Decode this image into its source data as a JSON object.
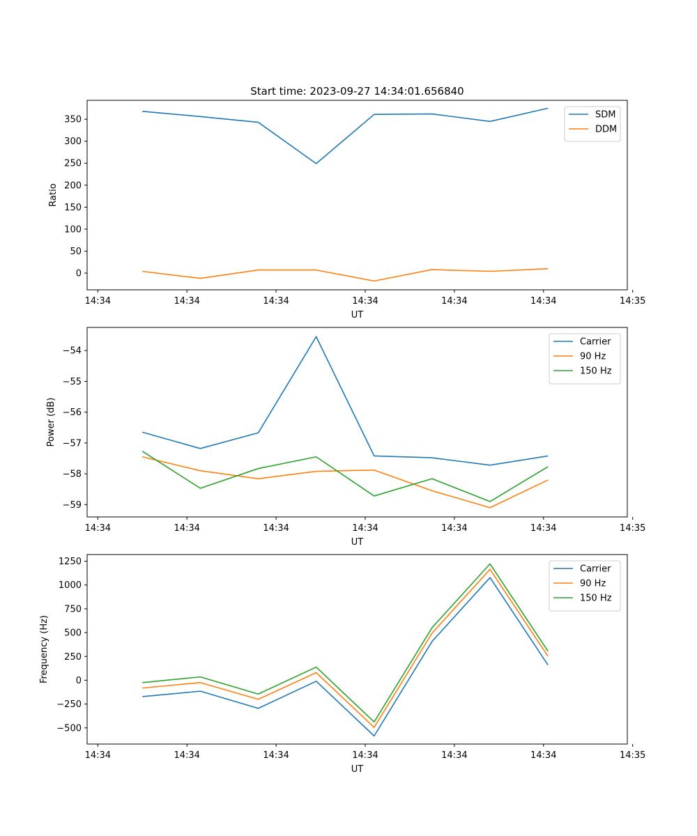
{
  "figure_title": "Start time: 2023-09-27 14:34:01.656840",
  "colors": {
    "blue": "#1f77b4",
    "orange": "#ff7f0e",
    "green": "#2ca02c"
  },
  "chart_data": [
    {
      "type": "line",
      "title": "Start time: 2023-09-27 14:34:01.656840",
      "xlabel": "UT",
      "ylabel": "Ratio",
      "x_ticks": [
        0,
        1,
        2,
        3,
        4,
        5,
        6
      ],
      "x_tick_labels": [
        "14:34",
        "14:34",
        "14:34",
        "14:34",
        "14:34",
        "14:34",
        "14:35"
      ],
      "xlim": [
        -0.12,
        5.94
      ],
      "ylim": [
        -38,
        393
      ],
      "y_ticks": [
        0,
        50,
        100,
        150,
        200,
        250,
        300,
        350
      ],
      "y_tick_labels": [
        "0",
        "50",
        "100",
        "150",
        "200",
        "250",
        "300",
        "350"
      ],
      "x": [
        0.5,
        1.15,
        1.8,
        2.45,
        3.1,
        3.75,
        4.4,
        5.05
      ],
      "legend_position": "upper-right",
      "series": [
        {
          "name": "SDM",
          "color": "#1f77b4",
          "values": [
            368,
            356,
            343,
            249,
            361,
            362,
            345,
            375
          ]
        },
        {
          "name": "DDM",
          "color": "#ff7f0e",
          "values": [
            4,
            -12,
            7,
            7,
            -18,
            8,
            4,
            10
          ]
        }
      ]
    },
    {
      "type": "line",
      "xlabel": "UT",
      "ylabel": "Power (dB)",
      "x_ticks": [
        0,
        1,
        2,
        3,
        4,
        5,
        6
      ],
      "x_tick_labels": [
        "14:34",
        "14:34",
        "14:34",
        "14:34",
        "14:34",
        "14:34",
        "14:35"
      ],
      "xlim": [
        -0.12,
        5.94
      ],
      "ylim": [
        -59.4,
        -53.25
      ],
      "y_ticks": [
        -59,
        -58,
        -57,
        -56,
        -55,
        -54
      ],
      "y_tick_labels": [
        "−59",
        "−58",
        "−57",
        "−56",
        "−55",
        "−54"
      ],
      "x": [
        0.5,
        1.15,
        1.8,
        2.45,
        3.1,
        3.75,
        4.4,
        5.05
      ],
      "legend_position": "upper-right",
      "series": [
        {
          "name": "Carrier",
          "color": "#1f77b4",
          "values": [
            -56.65,
            -57.18,
            -56.67,
            -53.55,
            -57.42,
            -57.48,
            -57.72,
            -57.42
          ]
        },
        {
          "name": "90 Hz",
          "color": "#ff7f0e",
          "values": [
            -57.45,
            -57.9,
            -58.16,
            -57.92,
            -57.88,
            -58.55,
            -59.1,
            -58.2
          ]
        },
        {
          "name": "150 Hz",
          "color": "#2ca02c",
          "values": [
            -57.27,
            -58.47,
            -57.83,
            -57.45,
            -58.72,
            -58.16,
            -58.9,
            -57.77
          ]
        }
      ]
    },
    {
      "type": "line",
      "xlabel": "UT",
      "ylabel": "Frequency (Hz)",
      "x_ticks": [
        0,
        1,
        2,
        3,
        4,
        5,
        6
      ],
      "x_tick_labels": [
        "14:34",
        "14:34",
        "14:34",
        "14:34",
        "14:34",
        "14:34",
        "14:35"
      ],
      "xlim": [
        -0.12,
        5.94
      ],
      "ylim": [
        -670,
        1320
      ],
      "y_ticks": [
        -500,
        -250,
        0,
        250,
        500,
        750,
        1000,
        1250
      ],
      "y_tick_labels": [
        "−500",
        "−250",
        "0",
        "250",
        "500",
        "750",
        "1000",
        "1250"
      ],
      "x": [
        0.5,
        1.15,
        1.8,
        2.45,
        3.1,
        3.75,
        4.4,
        5.05
      ],
      "legend_position": "upper-right",
      "series": [
        {
          "name": "Carrier",
          "color": "#1f77b4",
          "values": [
            -172,
            -115,
            -295,
            -10,
            -585,
            408,
            1078,
            160
          ]
        },
        {
          "name": "90 Hz",
          "color": "#ff7f0e",
          "values": [
            -82,
            -25,
            -200,
            80,
            -495,
            495,
            1165,
            252
          ]
        },
        {
          "name": "150 Hz",
          "color": "#2ca02c",
          "values": [
            -25,
            35,
            -145,
            138,
            -438,
            552,
            1222,
            305
          ]
        }
      ]
    }
  ]
}
